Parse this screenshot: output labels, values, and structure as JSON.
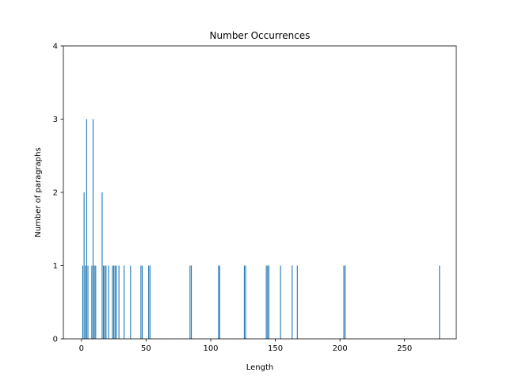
{
  "chart_data": {
    "type": "bar",
    "title": "Number Occurrences",
    "xlabel": "Length",
    "ylabel": "Number of paragraphs",
    "xlim": [
      -14,
      290
    ],
    "ylim": [
      0,
      4
    ],
    "xticks": [
      0,
      50,
      100,
      150,
      200,
      250
    ],
    "yticks": [
      0,
      1,
      2,
      3,
      4
    ],
    "grid": false,
    "bar_color": "#1f77b4",
    "series": [
      {
        "x": [
          1,
          2,
          3,
          4,
          5,
          8,
          9,
          10,
          11,
          16,
          17,
          18,
          19,
          21,
          24,
          25,
          26,
          27,
          29,
          33,
          38,
          46,
          47,
          52,
          53,
          84,
          85,
          106,
          107,
          126,
          127,
          143,
          144,
          145,
          154,
          163,
          167,
          203,
          204,
          277
        ],
        "values": [
          1,
          2,
          1,
          3,
          1,
          1,
          3,
          1,
          1,
          2,
          1,
          1,
          1,
          1,
          1,
          1,
          1,
          1,
          1,
          1,
          1,
          1,
          1,
          1,
          1,
          1,
          1,
          1,
          1,
          1,
          1,
          1,
          1,
          1,
          1,
          1,
          1,
          1,
          1,
          1
        ]
      }
    ]
  }
}
